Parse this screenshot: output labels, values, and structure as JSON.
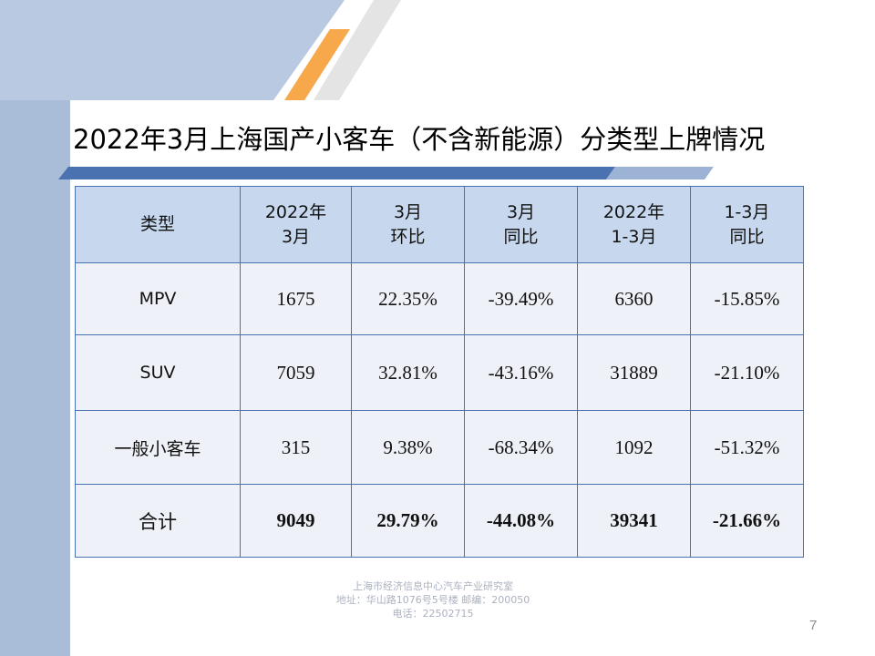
{
  "slide": {
    "title": "2022年3月上海国产小客车（不含新能源）分类型上牌情况",
    "page_number": "7"
  },
  "colors": {
    "left_band": "#a9bcd8",
    "top_band": "#b9c9e2",
    "orange_accent": "#f7a84a",
    "header_fill": "#c7d8ee",
    "row_fill": "#eef1f7",
    "grid_line": "#4a72b0"
  },
  "table": {
    "headers": [
      {
        "line1": "类型",
        "line2": ""
      },
      {
        "line1": "2022年",
        "line2": "3月"
      },
      {
        "line1": "3月",
        "line2": "环比"
      },
      {
        "line1": "3月",
        "line2": "同比"
      },
      {
        "line1": "2022年",
        "line2": "1-3月"
      },
      {
        "line1": "1-3月",
        "line2": "同比"
      }
    ],
    "rows": [
      {
        "type": "MPV",
        "march": "1675",
        "mom": "22.35%",
        "yoy": "-39.49%",
        "q1": "6360",
        "q1_yoy": "-15.85%"
      },
      {
        "type": "SUV",
        "march": "7059",
        "mom": "32.81%",
        "yoy": "-43.16%",
        "q1": "31889",
        "q1_yoy": "-21.10%"
      },
      {
        "type": "一般小客车",
        "march": "315",
        "mom": "9.38%",
        "yoy": "-68.34%",
        "q1": "1092",
        "q1_yoy": "-51.32%"
      }
    ],
    "total": {
      "type": "合计",
      "march": "9049",
      "mom": "29.79%",
      "yoy": "-44.08%",
      "q1": "39341",
      "q1_yoy": "-21.66%"
    }
  },
  "footer": {
    "org": "上海市经济信息中心汽车产业研究室",
    "address": "地址：华山路1076号5号楼    邮编：200050",
    "phone": "电话：22502715"
  }
}
